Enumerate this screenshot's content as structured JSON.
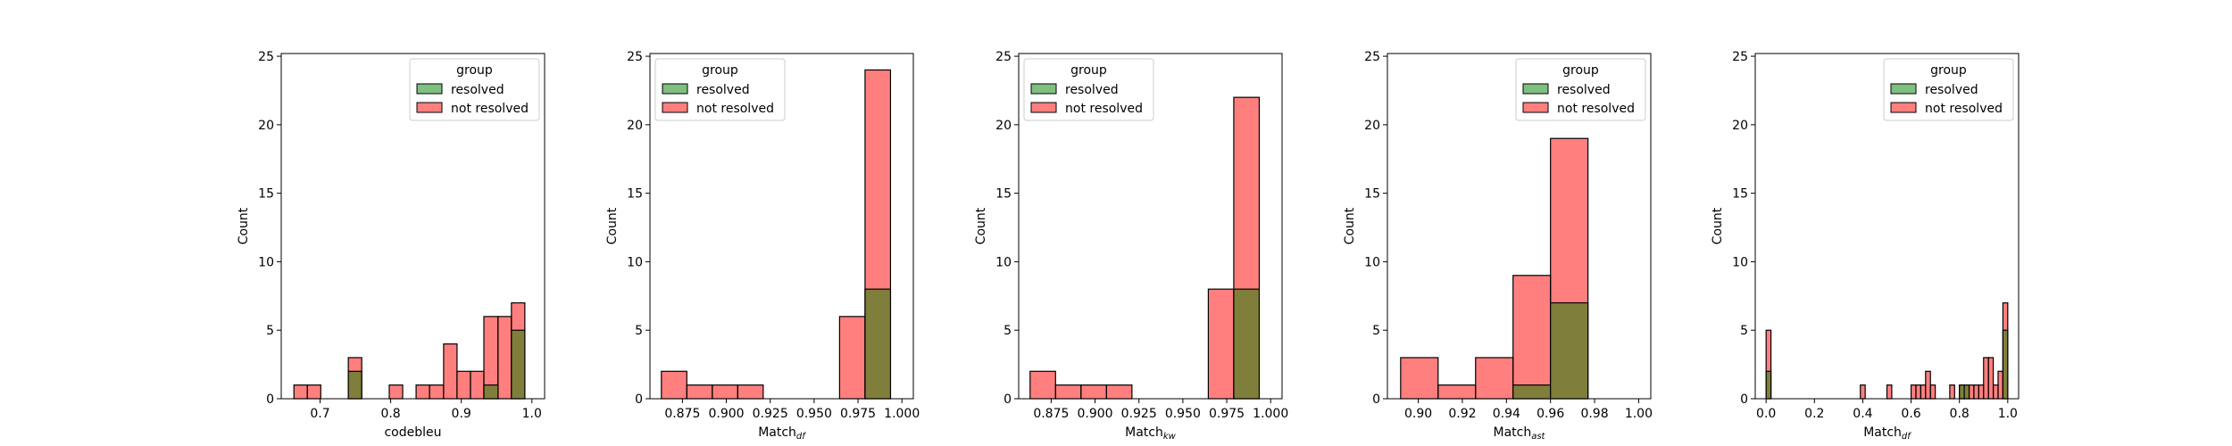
{
  "colors": {
    "resolved_fill": "#008000",
    "not_resolved_fill": "#ff0000",
    "overlap_fill": "#7f7f3b",
    "edge": "#000000"
  },
  "chart_data": [
    {
      "type": "histogram",
      "xlabel": "codebleu",
      "xlabel_sub": "",
      "ylabel": "Count",
      "xlim": [
        0.645,
        1.018
      ],
      "ylim": [
        0,
        25.2
      ],
      "xticks": [
        0.7,
        0.8,
        0.9,
        1.0
      ],
      "xtick_labels": [
        "0.7",
        "0.8",
        "0.9",
        "1.0"
      ],
      "yticks": [
        0,
        5,
        10,
        15,
        20,
        25
      ],
      "legend": {
        "title": "group",
        "items": [
          "resolved",
          "not resolved"
        ],
        "loc": "upper right"
      },
      "bins": [
        {
          "x0": 0.663,
          "x1": 0.682,
          "resolved": 0,
          "not_resolved": 1
        },
        {
          "x0": 0.682,
          "x1": 0.701,
          "resolved": 0,
          "not_resolved": 1
        },
        {
          "x0": 0.74,
          "x1": 0.759,
          "resolved": 2,
          "not_resolved": 3
        },
        {
          "x0": 0.798,
          "x1": 0.817,
          "resolved": 0,
          "not_resolved": 1
        },
        {
          "x0": 0.836,
          "x1": 0.855,
          "resolved": 0,
          "not_resolved": 1
        },
        {
          "x0": 0.855,
          "x1": 0.875,
          "resolved": 0,
          "not_resolved": 1
        },
        {
          "x0": 0.875,
          "x1": 0.894,
          "resolved": 0,
          "not_resolved": 4
        },
        {
          "x0": 0.894,
          "x1": 0.913,
          "resolved": 0,
          "not_resolved": 2
        },
        {
          "x0": 0.913,
          "x1": 0.932,
          "resolved": 0,
          "not_resolved": 2
        },
        {
          "x0": 0.932,
          "x1": 0.952,
          "resolved": 1,
          "not_resolved": 6
        },
        {
          "x0": 0.952,
          "x1": 0.971,
          "resolved": 0,
          "not_resolved": 6
        },
        {
          "x0": 0.971,
          "x1": 0.99,
          "resolved": 5,
          "not_resolved": 7
        }
      ]
    },
    {
      "type": "histogram",
      "xlabel": "Match",
      "xlabel_sub": "df",
      "ylabel": "Count",
      "xlim": [
        0.8565,
        1.0065
      ],
      "ylim": [
        0,
        25.2
      ],
      "xticks": [
        0.875,
        0.9,
        0.925,
        0.95,
        0.975,
        1.0
      ],
      "xtick_labels": [
        "0.875",
        "0.900",
        "0.925",
        "0.950",
        "0.975",
        "1.000"
      ],
      "yticks": [
        0,
        5,
        10,
        15,
        20,
        25
      ],
      "legend": {
        "title": "group",
        "items": [
          "resolved",
          "not resolved"
        ],
        "loc": "upper left"
      },
      "bins": [
        {
          "x0": 0.863,
          "x1": 0.8775,
          "resolved": 0,
          "not_resolved": 2
        },
        {
          "x0": 0.8775,
          "x1": 0.892,
          "resolved": 0,
          "not_resolved": 1
        },
        {
          "x0": 0.892,
          "x1": 0.9065,
          "resolved": 0,
          "not_resolved": 1
        },
        {
          "x0": 0.9065,
          "x1": 0.921,
          "resolved": 0,
          "not_resolved": 1
        },
        {
          "x0": 0.9645,
          "x1": 0.979,
          "resolved": 0,
          "not_resolved": 6
        },
        {
          "x0": 0.979,
          "x1": 0.9935,
          "resolved": 8,
          "not_resolved": 24
        }
      ]
    },
    {
      "type": "histogram",
      "xlabel": "Match",
      "xlabel_sub": "kw",
      "ylabel": "Count",
      "xlim": [
        0.8565,
        1.0065
      ],
      "ylim": [
        0,
        25.2
      ],
      "xticks": [
        0.875,
        0.9,
        0.925,
        0.95,
        0.975,
        1.0
      ],
      "xtick_labels": [
        "0.875",
        "0.900",
        "0.925",
        "0.950",
        "0.975",
        "1.000"
      ],
      "yticks": [
        0,
        5,
        10,
        15,
        20,
        25
      ],
      "legend": {
        "title": "group",
        "items": [
          "resolved",
          "not resolved"
        ],
        "loc": "upper left"
      },
      "bins": [
        {
          "x0": 0.863,
          "x1": 0.8775,
          "resolved": 0,
          "not_resolved": 2
        },
        {
          "x0": 0.8775,
          "x1": 0.892,
          "resolved": 0,
          "not_resolved": 1
        },
        {
          "x0": 0.892,
          "x1": 0.9065,
          "resolved": 0,
          "not_resolved": 1
        },
        {
          "x0": 0.9065,
          "x1": 0.921,
          "resolved": 0,
          "not_resolved": 1
        },
        {
          "x0": 0.9645,
          "x1": 0.979,
          "resolved": 0,
          "not_resolved": 8
        },
        {
          "x0": 0.979,
          "x1": 0.9935,
          "resolved": 8,
          "not_resolved": 22
        }
      ]
    },
    {
      "type": "histogram",
      "xlabel": "Match",
      "xlabel_sub": "ast",
      "ylabel": "Count",
      "xlim": [
        0.886,
        1.0055
      ],
      "ylim": [
        0,
        25.2
      ],
      "xticks": [
        0.9,
        0.92,
        0.94,
        0.96,
        0.98,
        1.0
      ],
      "xtick_labels": [
        "0.90",
        "0.92",
        "0.94",
        "0.96",
        "0.98",
        "1.00"
      ],
      "yticks": [
        0,
        5,
        10,
        15,
        20,
        25
      ],
      "legend": {
        "title": "group",
        "items": [
          "resolved",
          "not resolved"
        ],
        "loc": "upper right"
      },
      "bins": [
        {
          "x0": 0.892,
          "x1": 0.909,
          "resolved": 0,
          "not_resolved": 3
        },
        {
          "x0": 0.909,
          "x1": 0.926,
          "resolved": 0,
          "not_resolved": 1
        },
        {
          "x0": 0.926,
          "x1": 0.943,
          "resolved": 0,
          "not_resolved": 3
        },
        {
          "x0": 0.943,
          "x1": 0.96,
          "resolved": 1,
          "not_resolved": 9
        },
        {
          "x0": 0.96,
          "x1": 0.977,
          "resolved": 7,
          "not_resolved": 19
        }
      ]
    },
    {
      "type": "histogram",
      "xlabel": "Match",
      "xlabel_sub": "df",
      "ylabel": "Count",
      "xlim": [
        -0.045,
        1.045
      ],
      "ylim": [
        0,
        25.2
      ],
      "xticks": [
        0.0,
        0.2,
        0.4,
        0.6,
        0.8,
        1.0
      ],
      "xtick_labels": [
        "0.0",
        "0.2",
        "0.4",
        "0.6",
        "0.8",
        "1.0"
      ],
      "yticks": [
        0,
        5,
        10,
        15,
        20,
        25
      ],
      "legend": {
        "title": "group",
        "items": [
          "resolved",
          "not resolved"
        ],
        "loc": "upper right"
      },
      "bins": [
        {
          "x0": 0.0,
          "x1": 0.02,
          "resolved": 2,
          "not_resolved": 5
        },
        {
          "x0": 0.39,
          "x1": 0.41,
          "resolved": 0,
          "not_resolved": 1
        },
        {
          "x0": 0.5,
          "x1": 0.52,
          "resolved": 0,
          "not_resolved": 1
        },
        {
          "x0": 0.6,
          "x1": 0.62,
          "resolved": 0,
          "not_resolved": 1
        },
        {
          "x0": 0.62,
          "x1": 0.64,
          "resolved": 0,
          "not_resolved": 1
        },
        {
          "x0": 0.64,
          "x1": 0.66,
          "resolved": 0,
          "not_resolved": 1
        },
        {
          "x0": 0.66,
          "x1": 0.68,
          "resolved": 0,
          "not_resolved": 2
        },
        {
          "x0": 0.68,
          "x1": 0.7,
          "resolved": 0,
          "not_resolved": 1
        },
        {
          "x0": 0.76,
          "x1": 0.78,
          "resolved": 0,
          "not_resolved": 1
        },
        {
          "x0": 0.8,
          "x1": 0.82,
          "resolved": 1,
          "not_resolved": 1
        },
        {
          "x0": 0.82,
          "x1": 0.84,
          "resolved": 1,
          "not_resolved": 1
        },
        {
          "x0": 0.84,
          "x1": 0.86,
          "resolved": 0,
          "not_resolved": 1
        },
        {
          "x0": 0.86,
          "x1": 0.88,
          "resolved": 0,
          "not_resolved": 1
        },
        {
          "x0": 0.88,
          "x1": 0.9,
          "resolved": 0,
          "not_resolved": 1
        },
        {
          "x0": 0.9,
          "x1": 0.92,
          "resolved": 0,
          "not_resolved": 3
        },
        {
          "x0": 0.92,
          "x1": 0.94,
          "resolved": 0,
          "not_resolved": 3
        },
        {
          "x0": 0.94,
          "x1": 0.96,
          "resolved": 0,
          "not_resolved": 1
        },
        {
          "x0": 0.96,
          "x1": 0.98,
          "resolved": 0,
          "not_resolved": 2
        },
        {
          "x0": 0.98,
          "x1": 1.0,
          "resolved": 5,
          "not_resolved": 7
        }
      ]
    }
  ]
}
